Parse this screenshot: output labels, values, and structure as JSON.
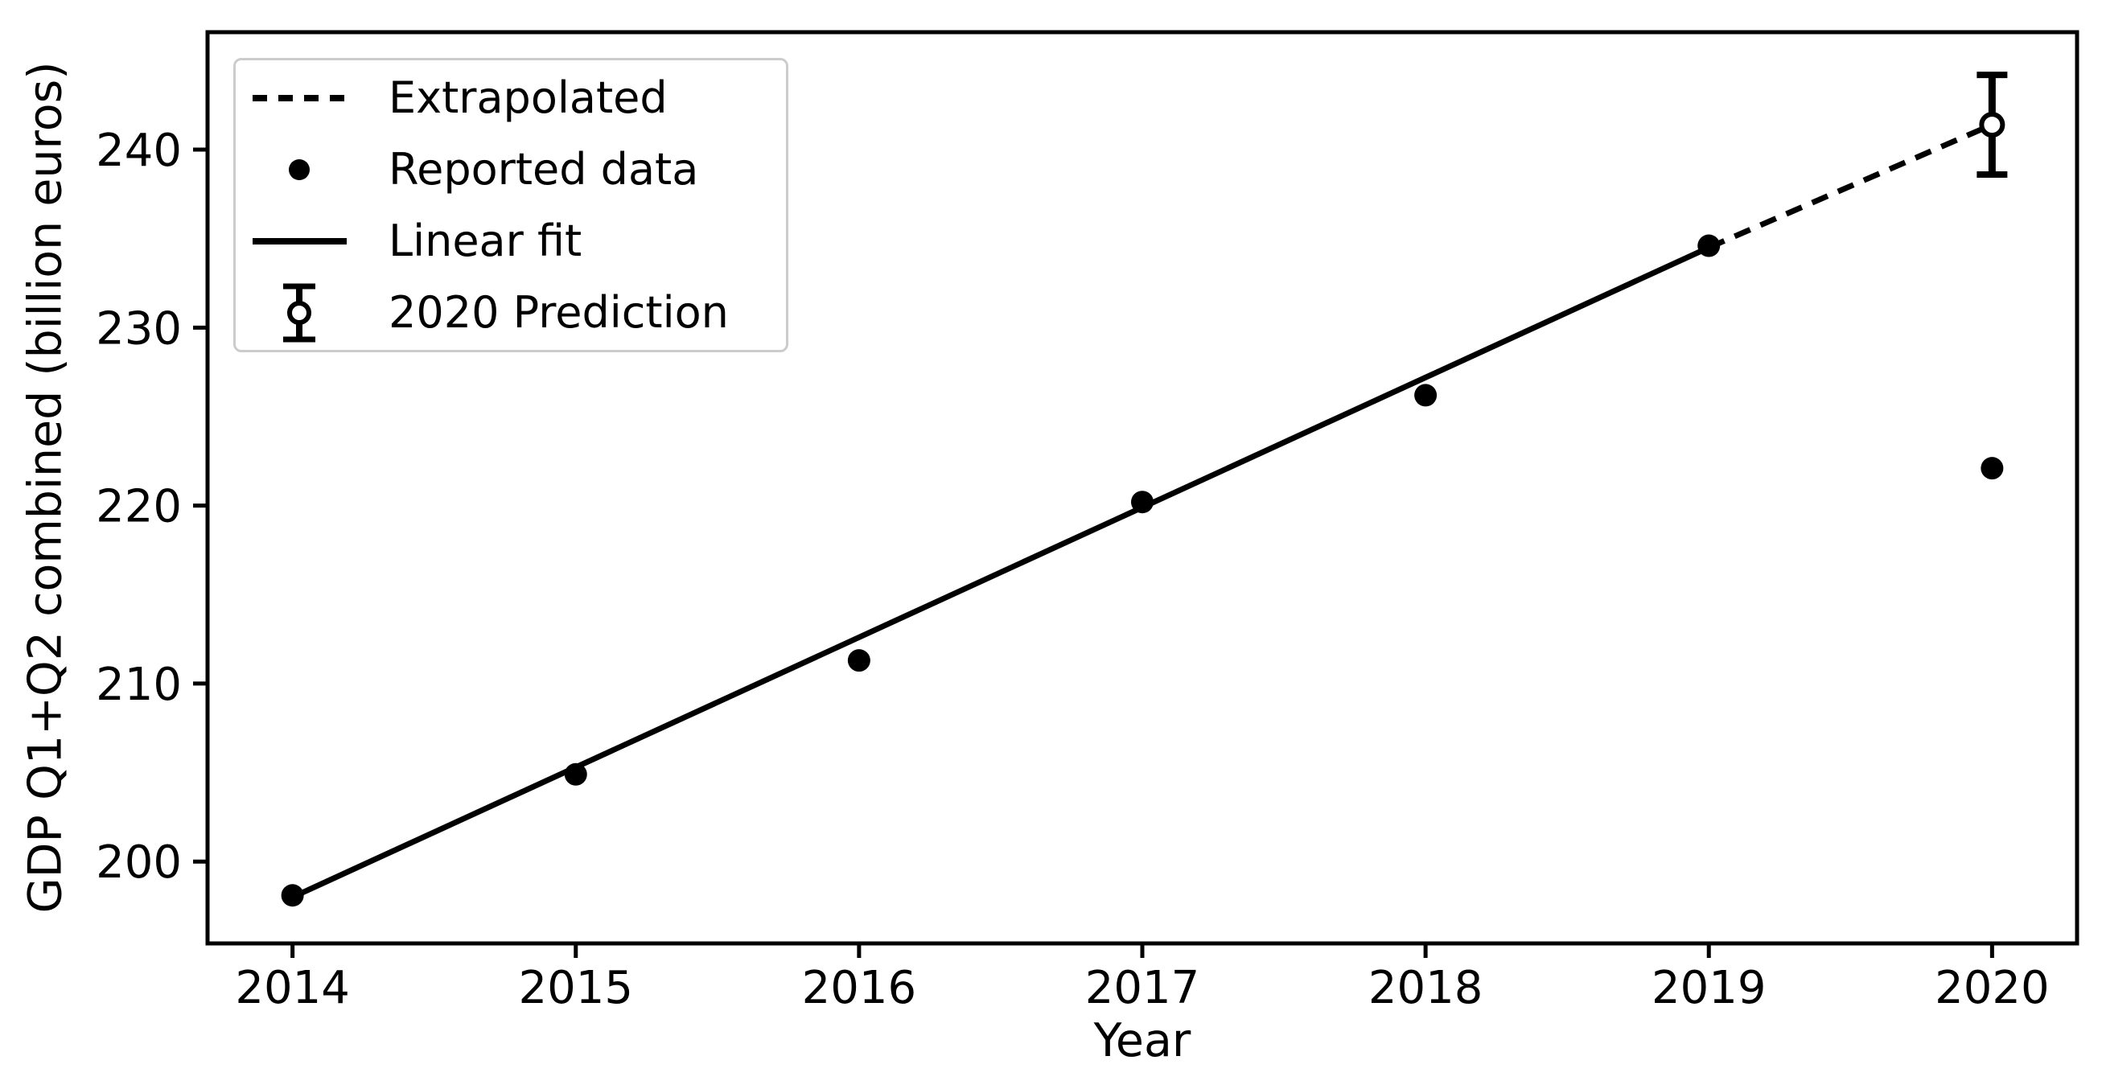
{
  "chart_data": {
    "type": "scatter",
    "title": "",
    "xlabel": "Year",
    "ylabel": "GDP Q1+Q2 combined (billion euros)",
    "xlim": [
      2013.7,
      2020.3
    ],
    "ylim": [
      195.4,
      246.6
    ],
    "x_ticks": [
      2014,
      2015,
      2016,
      2017,
      2018,
      2019,
      2020
    ],
    "y_ticks": [
      200,
      210,
      220,
      230,
      240
    ],
    "grid": false,
    "series": [
      {
        "name": "Reported data",
        "type": "scatter",
        "x": [
          2014,
          2015,
          2016,
          2017,
          2018,
          2019,
          2020
        ],
        "y": [
          198.1,
          204.9,
          211.3,
          220.2,
          226.2,
          234.6,
          222.1
        ]
      },
      {
        "name": "Linear fit",
        "type": "line",
        "style": "solid",
        "x": [
          2014,
          2019
        ],
        "y": [
          198.0,
          234.5
        ]
      },
      {
        "name": "Extrapolated",
        "type": "line",
        "style": "dashed",
        "x": [
          2019,
          2020
        ],
        "y": [
          234.5,
          241.4
        ]
      },
      {
        "name": "2020 Prediction",
        "type": "errorbar",
        "marker": "open-circle",
        "x": [
          2020
        ],
        "y": [
          241.4
        ],
        "yerr": [
          2.8
        ]
      }
    ],
    "legend": {
      "position": "upper left",
      "items": [
        "Extrapolated",
        "Reported data",
        "Linear fit",
        "2020 Prediction"
      ]
    },
    "colors": {
      "data": "#000000",
      "legend_border": "#cccccc",
      "background": "#ffffff"
    }
  }
}
